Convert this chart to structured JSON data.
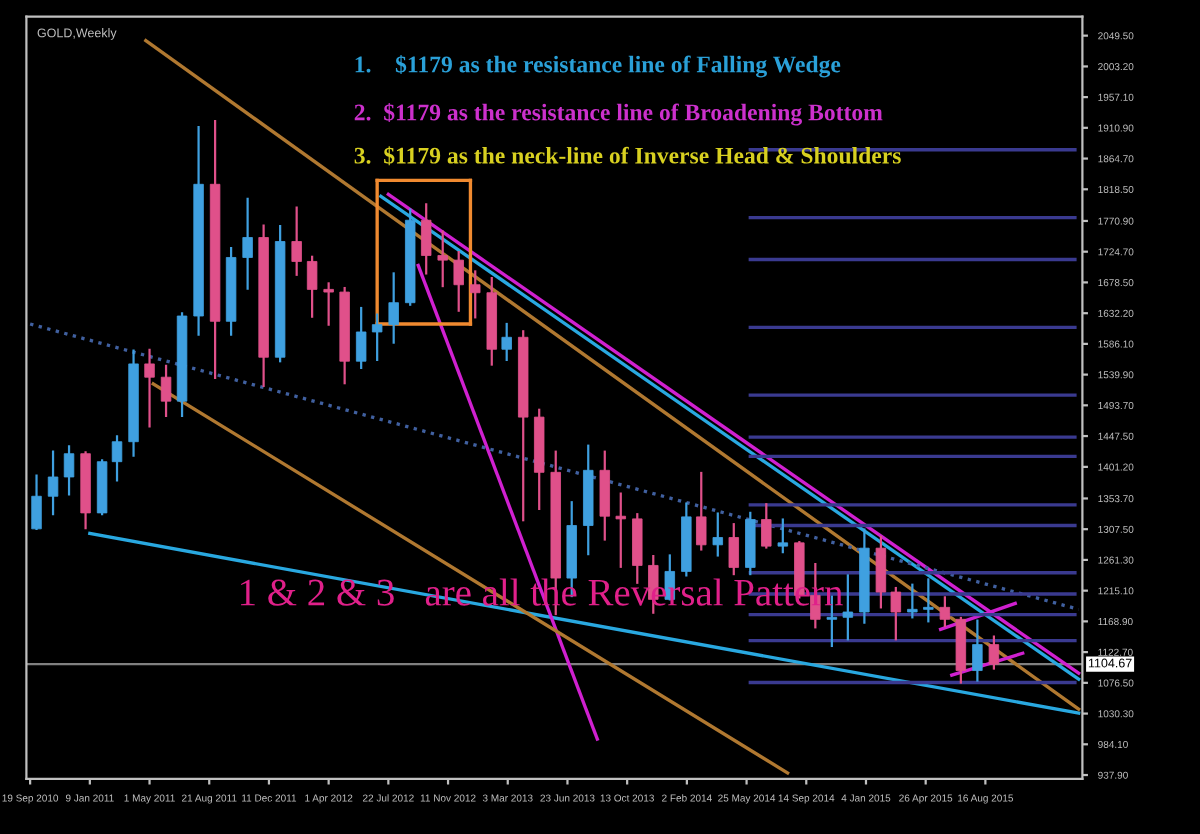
{
  "chart_data": {
    "type": "candlestick",
    "title": "GOLD,Weekly",
    "annotations": [
      "1.    $1179 as the resistance line of Falling Wedge",
      "2.  $1179 as the resistance line of Broadening Bottom",
      "3.  $1179 as the neck-line of Inverse Head & Shoulders",
      "1 & 2 & 3   are all the Reversal Pattern"
    ],
    "x": [
      "2010-10",
      "2010-11",
      "2010-12",
      "2011-01",
      "2011-02",
      "2011-03",
      "2011-04",
      "2011-05",
      "2011-06",
      "2011-07",
      "2011-08",
      "2011-09",
      "2011-10",
      "2011-11",
      "2011-12",
      "2012-01",
      "2012-02",
      "2012-03",
      "2012-04",
      "2012-05",
      "2012-06",
      "2012-07",
      "2012-08",
      "2012-09",
      "2012-10",
      "2012-11",
      "2012-12",
      "2013-01",
      "2013-02",
      "2013-03",
      "2013-04",
      "2013-05",
      "2013-06",
      "2013-07",
      "2013-08",
      "2013-09",
      "2013-10",
      "2013-11",
      "2013-12",
      "2014-01",
      "2014-02",
      "2014-03",
      "2014-04",
      "2014-05",
      "2014-06",
      "2014-07",
      "2014-08",
      "2014-09",
      "2014-10",
      "2014-11",
      "2014-12",
      "2015-01",
      "2015-02",
      "2015-03",
      "2015-04",
      "2015-05",
      "2015-06",
      "2015-07",
      "2015-08",
      "2015-09"
    ],
    "ohlc": [
      [
        1308,
        1388,
        1308,
        1357
      ],
      [
        1357,
        1424,
        1330,
        1386
      ],
      [
        1386,
        1432,
        1360,
        1421
      ],
      [
        1421,
        1423,
        1309,
        1332
      ],
      [
        1332,
        1411,
        1330,
        1409
      ],
      [
        1409,
        1447,
        1381,
        1439
      ],
      [
        1439,
        1576,
        1418,
        1556
      ],
      [
        1556,
        1577,
        1462,
        1536
      ],
      [
        1536,
        1553,
        1478,
        1500
      ],
      [
        1500,
        1632,
        1478,
        1628
      ],
      [
        1628,
        1912,
        1600,
        1826
      ],
      [
        1826,
        1921,
        1535,
        1620
      ],
      [
        1620,
        1730,
        1600,
        1716
      ],
      [
        1716,
        1804,
        1669,
        1746
      ],
      [
        1746,
        1764,
        1523,
        1566
      ],
      [
        1566,
        1763,
        1560,
        1740
      ],
      [
        1740,
        1791,
        1690,
        1710
      ],
      [
        1710,
        1717,
        1627,
        1668
      ],
      [
        1668,
        1677,
        1615,
        1664
      ],
      [
        1664,
        1670,
        1527,
        1560
      ],
      [
        1560,
        1640,
        1550,
        1604
      ],
      [
        1604,
        1630,
        1562,
        1615
      ],
      [
        1615,
        1692,
        1588,
        1648
      ],
      [
        1648,
        1788,
        1645,
        1772
      ],
      [
        1772,
        1796,
        1692,
        1719
      ],
      [
        1719,
        1755,
        1673,
        1712
      ],
      [
        1712,
        1724,
        1636,
        1675
      ],
      [
        1675,
        1695,
        1626,
        1663
      ],
      [
        1663,
        1685,
        1555,
        1578
      ],
      [
        1578,
        1616,
        1562,
        1596
      ],
      [
        1596,
        1605,
        1321,
        1476
      ],
      [
        1476,
        1487,
        1338,
        1393
      ],
      [
        1393,
        1424,
        1180,
        1234
      ],
      [
        1234,
        1348,
        1207,
        1313
      ],
      [
        1313,
        1433,
        1270,
        1396
      ],
      [
        1396,
        1424,
        1292,
        1327
      ],
      [
        1327,
        1361,
        1251,
        1323
      ],
      [
        1323,
        1330,
        1227,
        1253
      ],
      [
        1253,
        1267,
        1182,
        1202
      ],
      [
        1202,
        1268,
        1202,
        1244
      ],
      [
        1244,
        1346,
        1238,
        1326
      ],
      [
        1326,
        1392,
        1277,
        1284
      ],
      [
        1284,
        1331,
        1268,
        1295
      ],
      [
        1295,
        1315,
        1240,
        1250
      ],
      [
        1250,
        1332,
        1240,
        1322
      ],
      [
        1322,
        1345,
        1280,
        1282
      ],
      [
        1282,
        1322,
        1273,
        1287
      ],
      [
        1287,
        1288,
        1205,
        1208
      ],
      [
        1208,
        1255,
        1160,
        1172
      ],
      [
        1172,
        1206,
        1132,
        1175
      ],
      [
        1175,
        1238,
        1142,
        1183
      ],
      [
        1183,
        1307,
        1167,
        1279
      ],
      [
        1279,
        1296,
        1190,
        1213
      ],
      [
        1213,
        1219,
        1142,
        1183
      ],
      [
        1183,
        1224,
        1175,
        1187
      ],
      [
        1187,
        1232,
        1169,
        1190
      ],
      [
        1190,
        1205,
        1162,
        1172
      ],
      [
        1172,
        1174,
        1077,
        1095
      ],
      [
        1095,
        1170,
        1080,
        1134
      ],
      [
        1134,
        1146,
        1098,
        1104.67
      ]
    ],
    "colors": [
      "#3fa0e0",
      "#3fa0e0",
      "#3fa0e0",
      "#e0508a",
      "#3fa0e0",
      "#3fa0e0",
      "#3fa0e0",
      "#e0508a",
      "#e0508a",
      "#3fa0e0",
      "#3fa0e0",
      "#e0508a",
      "#3fa0e0",
      "#3fa0e0",
      "#e0508a",
      "#3fa0e0",
      "#e0508a",
      "#e0508a",
      "#e0508a",
      "#e0508a",
      "#3fa0e0",
      "#3fa0e0",
      "#3fa0e0",
      "#3fa0e0",
      "#e0508a",
      "#e0508a",
      "#e0508a",
      "#e0508a",
      "#e0508a",
      "#3fa0e0",
      "#e0508a",
      "#e0508a",
      "#e0508a",
      "#3fa0e0",
      "#3fa0e0",
      "#e0508a",
      "#e0508a",
      "#e0508a",
      "#e0508a",
      "#3fa0e0",
      "#3fa0e0",
      "#e0508a",
      "#3fa0e0",
      "#e0508a",
      "#3fa0e0",
      "#e0508a",
      "#3fa0e0",
      "#e0508a",
      "#e0508a",
      "#3fa0e0",
      "#3fa0e0",
      "#3fa0e0",
      "#e0508a",
      "#e0508a",
      "#3fa0e0",
      "#3fa0e0",
      "#e0508a",
      "#e0508a",
      "#3fa0e0",
      "#e0508a"
    ],
    "series": [
      {
        "type": "line",
        "color": "#29a8e0",
        "x": [
          "2012-07-08",
          "2016-02-07"
        ],
        "values": [
          1808,
          1082
        ]
      },
      {
        "type": "line",
        "color": "#d020d0",
        "x": [
          "2012-07-22",
          "2016-02-07"
        ],
        "values": [
          1811,
          1091
        ]
      },
      {
        "type": "line",
        "color": "#29a8e0",
        "x": [
          "2011-01-09",
          "2016-02-07"
        ],
        "values": [
          1301,
          1031
        ]
      },
      {
        "type": "line",
        "color": "#d020d0",
        "x": [
          "2012-09-16",
          "2013-08-18"
        ],
        "values": [
          1704,
          992
        ]
      },
      {
        "type": "line",
        "color": "#b07830",
        "x": [
          "2011-04-24",
          "2016-02-07"
        ],
        "values": [
          2042,
          1037
        ]
      },
      {
        "type": "line",
        "color": "#b07830",
        "x": [
          "2011-05-08",
          "2014-08-10"
        ],
        "values": [
          1526,
          941
        ]
      },
      {
        "type": "line",
        "color": "#4060a0",
        "line_style": "dotted",
        "x": [
          "2010-09-19",
          "2016-02-07"
        ],
        "values": [
          1616,
          1187
        ]
      },
      {
        "type": "line",
        "color": "#f08a30",
        "x": [
          "2012-07-01",
          "2012-12-23"
        ],
        "values": [
          1832,
          1832
        ]
      },
      {
        "type": "line",
        "color": "#f08a30",
        "x": [
          "2012-07-01",
          "2012-12-23"
        ],
        "values": [
          1616,
          1616
        ]
      },
      {
        "type": "line",
        "color": "#f08a30",
        "x": [
          "2012-07-01",
          "2012-07-01"
        ],
        "values": [
          1616,
          1832
        ]
      },
      {
        "type": "line",
        "color": "#f08a30",
        "x": [
          "2012-12-23",
          "2012-12-23"
        ],
        "values": [
          1616,
          1832
        ]
      },
      {
        "type": "line",
        "color": "#d020d0",
        "x": [
          "2015-05-24",
          "2015-10-11"
        ],
        "values": [
          1157,
          1196
        ]
      },
      {
        "type": "line",
        "color": "#d020d0",
        "x": [
          "2015-06-14",
          "2015-10-25"
        ],
        "values": [
          1088,
          1121
        ]
      },
      {
        "type": "line",
        "color": "#3a3a90",
        "x": [
          "2014-06-01",
          "2016-01-31"
        ],
        "values": [
          1878,
          1878
        ]
      },
      {
        "type": "line",
        "color": "#3a3a90",
        "x": [
          "2014-06-01",
          "2016-01-31"
        ],
        "values": [
          1776,
          1776
        ]
      },
      {
        "type": "line",
        "color": "#3a3a90",
        "x": [
          "2014-06-01",
          "2016-01-31"
        ],
        "values": [
          1713,
          1713
        ]
      },
      {
        "type": "line",
        "color": "#3a3a90",
        "x": [
          "2014-06-01",
          "2016-01-31"
        ],
        "values": [
          1611,
          1611
        ]
      },
      {
        "type": "line",
        "color": "#3a3a90",
        "x": [
          "2014-06-01",
          "2016-01-31"
        ],
        "values": [
          1509,
          1509
        ]
      },
      {
        "type": "line",
        "color": "#3a3a90",
        "x": [
          "2014-06-01",
          "2016-01-31"
        ],
        "values": [
          1446,
          1446
        ]
      },
      {
        "type": "line",
        "color": "#3a3a90",
        "x": [
          "2014-06-01",
          "2016-01-31"
        ],
        "values": [
          1417,
          1417
        ]
      },
      {
        "type": "line",
        "color": "#3a3a90",
        "x": [
          "2014-06-01",
          "2016-01-31"
        ],
        "values": [
          1344,
          1344
        ]
      },
      {
        "type": "line",
        "color": "#3a3a90",
        "x": [
          "2014-06-01",
          "2016-01-31"
        ],
        "values": [
          1313,
          1313
        ]
      },
      {
        "type": "line",
        "color": "#3a3a90",
        "x": [
          "2014-06-01",
          "2016-01-31"
        ],
        "values": [
          1242,
          1242
        ]
      },
      {
        "type": "line",
        "color": "#3a3a90",
        "x": [
          "2014-06-01",
          "2016-01-31"
        ],
        "values": [
          1210,
          1210
        ]
      },
      {
        "type": "line",
        "color": "#3a3a90",
        "x": [
          "2014-06-01",
          "2016-01-31"
        ],
        "values": [
          1179,
          1179
        ]
      },
      {
        "type": "line",
        "color": "#3a3a90",
        "x": [
          "2014-06-01",
          "2016-01-31"
        ],
        "values": [
          1140,
          1140
        ]
      },
      {
        "type": "line",
        "color": "#3a3a90",
        "x": [
          "2014-06-01",
          "2016-01-31"
        ],
        "values": [
          1077,
          1077
        ]
      }
    ],
    "ref_lines": [
      {
        "axis": "y",
        "value": 1104.67,
        "label": "1104.67",
        "color": "#808080"
      }
    ],
    "xlim": [
      "2010-09-12",
      "2016-02-14"
    ],
    "xticks": [
      {
        "value": "2010-09-19",
        "label": "19 Sep 2010"
      },
      {
        "value": "2011-01-09",
        "label": "9 Jan 2011"
      },
      {
        "value": "2011-05-01",
        "label": "1 May 2011"
      },
      {
        "value": "2011-08-21",
        "label": "21 Aug 2011"
      },
      {
        "value": "2011-12-11",
        "label": "11 Dec 2011"
      },
      {
        "value": "2012-04-01",
        "label": "1 Apr 2012"
      },
      {
        "value": "2012-07-22",
        "label": "22 Jul 2012"
      },
      {
        "value": "2012-11-11",
        "label": "11 Nov 2012"
      },
      {
        "value": "2013-03-03",
        "label": "3 Mar 2013"
      },
      {
        "value": "2013-06-23",
        "label": "23 Jun 2013"
      },
      {
        "value": "2013-10-13",
        "label": "13 Oct 2013"
      },
      {
        "value": "2014-02-02",
        "label": "2 Feb 2014"
      },
      {
        "value": "2014-05-25",
        "label": "25 May 2014"
      },
      {
        "value": "2014-09-14",
        "label": "14 Sep 2014"
      },
      {
        "value": "2015-01-04",
        "label": "4 Jan 2015"
      },
      {
        "value": "2015-04-26",
        "label": "26 Apr 2015"
      },
      {
        "value": "2015-08-16",
        "label": "16 Aug 2015"
      }
    ],
    "ylim": [
      932,
      2078
    ],
    "yticks": [
      {
        "value": 2049.5,
        "label": "2049.50"
      },
      {
        "value": 2003.2,
        "label": "2003.20"
      },
      {
        "value": 1957.1,
        "label": "1957.10"
      },
      {
        "value": 1910.9,
        "label": "1910.90"
      },
      {
        "value": 1864.7,
        "label": "1864.70"
      },
      {
        "value": 1818.5,
        "label": "1818.50"
      },
      {
        "value": 1770.9,
        "label": "1770.90"
      },
      {
        "value": 1724.7,
        "label": "1724.70"
      },
      {
        "value": 1678.5,
        "label": "1678.50"
      },
      {
        "value": 1632.2,
        "label": "1632.20"
      },
      {
        "value": 1586.1,
        "label": "1586.10"
      },
      {
        "value": 1539.9,
        "label": "1539.90"
      },
      {
        "value": 1493.7,
        "label": "1493.70"
      },
      {
        "value": 1447.5,
        "label": "1447.50"
      },
      {
        "value": 1401.2,
        "label": "1401.20"
      },
      {
        "value": 1353.7,
        "label": "1353.70"
      },
      {
        "value": 1307.5,
        "label": "1307.50"
      },
      {
        "value": 1261.3,
        "label": "1261.30"
      },
      {
        "value": 1215.1,
        "label": "1215.10"
      },
      {
        "value": 1168.9,
        "label": "1168.90"
      },
      {
        "value": 1122.7,
        "label": "1122.70"
      },
      {
        "value": 1076.5,
        "label": "1076.50"
      },
      {
        "value": 1030.3,
        "label": "1030.30"
      },
      {
        "value": 984.1,
        "label": "984.10"
      },
      {
        "value": 937.9,
        "label": "937.90"
      }
    ],
    "grid": false,
    "legend": false
  }
}
